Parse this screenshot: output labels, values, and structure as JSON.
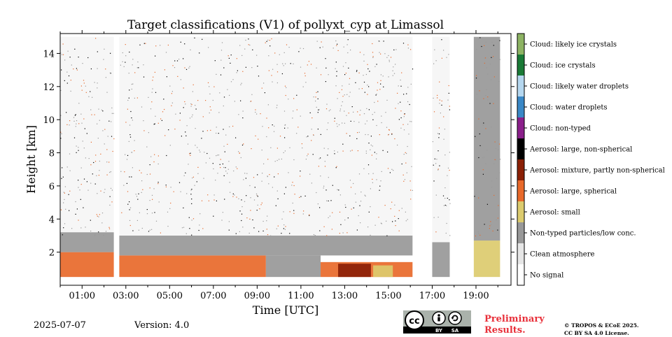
{
  "chart_data": {
    "type": "heatmap",
    "title": "Target classifications (V1) of pollyxt_cyp at Limassol",
    "xlabel": "Time [UTC]",
    "ylabel": "Height [km]",
    "xlim": [
      0,
      20.6
    ],
    "ylim": [
      0,
      15.2
    ],
    "x_ticks": [
      1,
      3,
      5,
      7,
      9,
      11,
      13,
      15,
      17,
      19
    ],
    "x_tick_labels": [
      "01:00",
      "03:00",
      "05:00",
      "07:00",
      "09:00",
      "11:00",
      "13:00",
      "15:00",
      "17:00",
      "19:00"
    ],
    "y_ticks": [
      2,
      4,
      6,
      8,
      10,
      12,
      14
    ],
    "y_tick_labels": [
      "2",
      "4",
      "6",
      "8",
      "10",
      "12",
      "14"
    ],
    "data_gaps_utc": [
      [
        2.45,
        2.7
      ],
      [
        16.1,
        17.0
      ],
      [
        17.8,
        18.9
      ]
    ],
    "regions": [
      {
        "t0": 0.0,
        "t1": 2.45,
        "h0": 0.5,
        "h1": 2.0,
        "class": "Aerosol: large, spherical"
      },
      {
        "t0": 0.0,
        "t1": 2.45,
        "h0": 2.0,
        "h1": 3.2,
        "class": "Non-typed particles/low conc."
      },
      {
        "t0": 0.0,
        "t1": 2.45,
        "h0": 3.2,
        "h1": 15.0,
        "class": "Clean atmosphere"
      },
      {
        "t0": 2.7,
        "t1": 9.4,
        "h0": 0.5,
        "h1": 1.8,
        "class": "Aerosol: large, spherical"
      },
      {
        "t0": 2.7,
        "t1": 16.1,
        "h0": 1.8,
        "h1": 3.0,
        "class": "Non-typed particles/low conc."
      },
      {
        "t0": 9.4,
        "t1": 11.9,
        "h0": 0.5,
        "h1": 1.8,
        "class": "Non-typed particles/low conc."
      },
      {
        "t0": 11.9,
        "t1": 16.1,
        "h0": 0.5,
        "h1": 1.4,
        "class": "Aerosol: large, spherical"
      },
      {
        "t0": 12.7,
        "t1": 14.2,
        "h0": 0.5,
        "h1": 1.3,
        "class": "Aerosol: mixture, partly non-spherical"
      },
      {
        "t0": 14.3,
        "t1": 15.2,
        "h0": 0.5,
        "h1": 1.2,
        "class": "Aerosol: small"
      },
      {
        "t0": 2.7,
        "t1": 16.1,
        "h0": 3.0,
        "h1": 15.0,
        "class": "Clean atmosphere"
      },
      {
        "t0": 17.0,
        "t1": 17.8,
        "h0": 0.5,
        "h1": 2.6,
        "class": "Non-typed particles/low conc."
      },
      {
        "t0": 17.0,
        "t1": 17.8,
        "h0": 2.6,
        "h1": 15.0,
        "class": "Clean atmosphere"
      },
      {
        "t0": 18.9,
        "t1": 20.1,
        "h0": 0.5,
        "h1": 2.7,
        "class": "Aerosol: small"
      },
      {
        "t0": 18.9,
        "t1": 20.1,
        "h0": 2.7,
        "h1": 15.0,
        "class": "Non-typed particles/low conc."
      }
    ]
  },
  "legend": {
    "classes": [
      {
        "label": "Cloud: likely ice crystals",
        "color": "#8db363"
      },
      {
        "label": "Cloud: ice crystals",
        "color": "#1a7a36"
      },
      {
        "label": "Cloud: likely water droplets",
        "color": "#b5d7ef"
      },
      {
        "label": "Cloud: water droplets",
        "color": "#3a88c6"
      },
      {
        "label": "Cloud: non-typed",
        "color": "#8a1f8a"
      },
      {
        "label": "Aerosol: large, non-spherical",
        "color": "#000000"
      },
      {
        "label": "Aerosol: mixture, partly non-spherical",
        "color": "#8b2006"
      },
      {
        "label": "Aerosol: large, spherical",
        "color": "#e8692a"
      },
      {
        "label": "Aerosol: small",
        "color": "#dccb6e"
      },
      {
        "label": "Non-typed particles/low conc.",
        "color": "#989898"
      },
      {
        "label": "Clean atmosphere",
        "color": "#e6e6e6"
      },
      {
        "label": "No signal",
        "color": "#ffffff"
      }
    ]
  },
  "footer": {
    "date": "2025-07-07",
    "version": "Version: 4.0",
    "preliminary_line1": "Preliminary",
    "preliminary_line2": "Results.",
    "copyright_line1": "© TROPOS & ECoE 2025.",
    "copyright_line2": "CC BY SA 4.0 License.",
    "license_badge": {
      "cc": "cc",
      "by": "BY",
      "sa": "SA"
    }
  }
}
